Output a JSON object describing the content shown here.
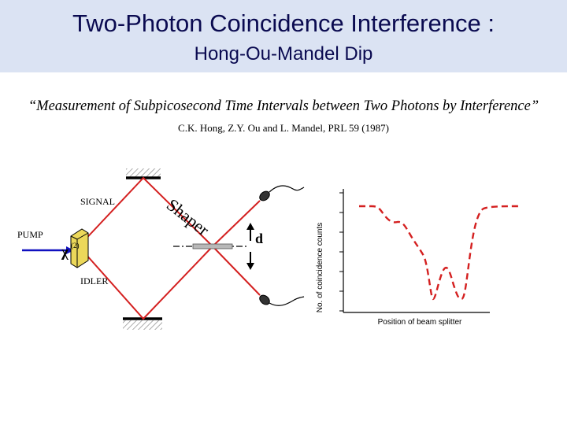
{
  "header": {
    "title": "Two-Photon Coincidence Interference :",
    "subtitle": "Hong-Ou-Mandel Dip"
  },
  "quote": "“Measurement of Subpicosecond Time Intervals between Two Photons by Interference”",
  "citation": "C.K. Hong, Z.Y. Ou and L. Mandel, PRL 59 (1987)",
  "diagram": {
    "pump_label": "PUMP",
    "signal_label": "SIGNAL",
    "idler_label": "IDLER",
    "chi_symbol": "χ",
    "chi_superscript": "(2)",
    "shaper_label": "Shaper",
    "displacement_label": "d"
  },
  "chart": {
    "ylabel": "No. of coincidence counts",
    "xlabel": "Position of beam splitter"
  },
  "colors": {
    "header_bg": "#dbe3f3",
    "title_text": "#0a0a50",
    "beam": "#d42020",
    "pump": "#1010c0",
    "crystal": "#ecd85a",
    "dip_curve": "#d42020"
  }
}
